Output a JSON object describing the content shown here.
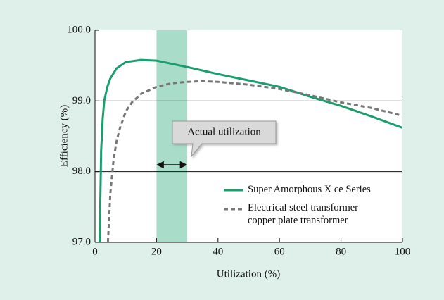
{
  "chart_data": {
    "type": "line",
    "xlabel": "Utilization (%)",
    "ylabel": "Efficiency (%)",
    "xlim": [
      0,
      100
    ],
    "xticks": [
      0,
      20,
      40,
      60,
      80,
      100
    ],
    "ylim": [
      97,
      100
    ],
    "yticks": [
      {
        "value": 97,
        "label": "97.0"
      },
      {
        "value": 98,
        "label": "98.0"
      },
      {
        "value": 99,
        "label": "99.0"
      },
      {
        "value": 100,
        "label": "100.0"
      }
    ],
    "grid": true,
    "highlight_range": [
      20,
      30
    ],
    "highlight_color": "#a9dcc9",
    "annotation": "Actual utilization",
    "series": [
      {
        "name": "Super Amorphous X ce Series",
        "color": "#1a9e6e",
        "dash": false,
        "x": [
          1.5,
          2,
          2.5,
          3,
          4,
          5,
          7,
          10,
          15,
          20,
          30,
          40,
          50,
          60,
          70,
          80,
          90,
          100
        ],
        "values": [
          97.0,
          98.3,
          98.75,
          99.0,
          99.2,
          99.32,
          99.46,
          99.55,
          99.58,
          99.57,
          99.48,
          99.38,
          99.29,
          99.2,
          99.06,
          98.93,
          98.78,
          98.62
        ]
      },
      {
        "name": "Electrical steel transformer copper plate transformer",
        "color": "#777777",
        "dash": true,
        "x": [
          4.2,
          5,
          6,
          7,
          8,
          10,
          12,
          15,
          20,
          25,
          30,
          35,
          40,
          50,
          60,
          70,
          80,
          90,
          100
        ],
        "values": [
          97.0,
          97.7,
          98.15,
          98.43,
          98.6,
          98.85,
          98.98,
          99.1,
          99.2,
          99.25,
          99.27,
          99.28,
          99.27,
          99.23,
          99.17,
          99.08,
          98.98,
          98.9,
          98.79
        ]
      }
    ]
  }
}
